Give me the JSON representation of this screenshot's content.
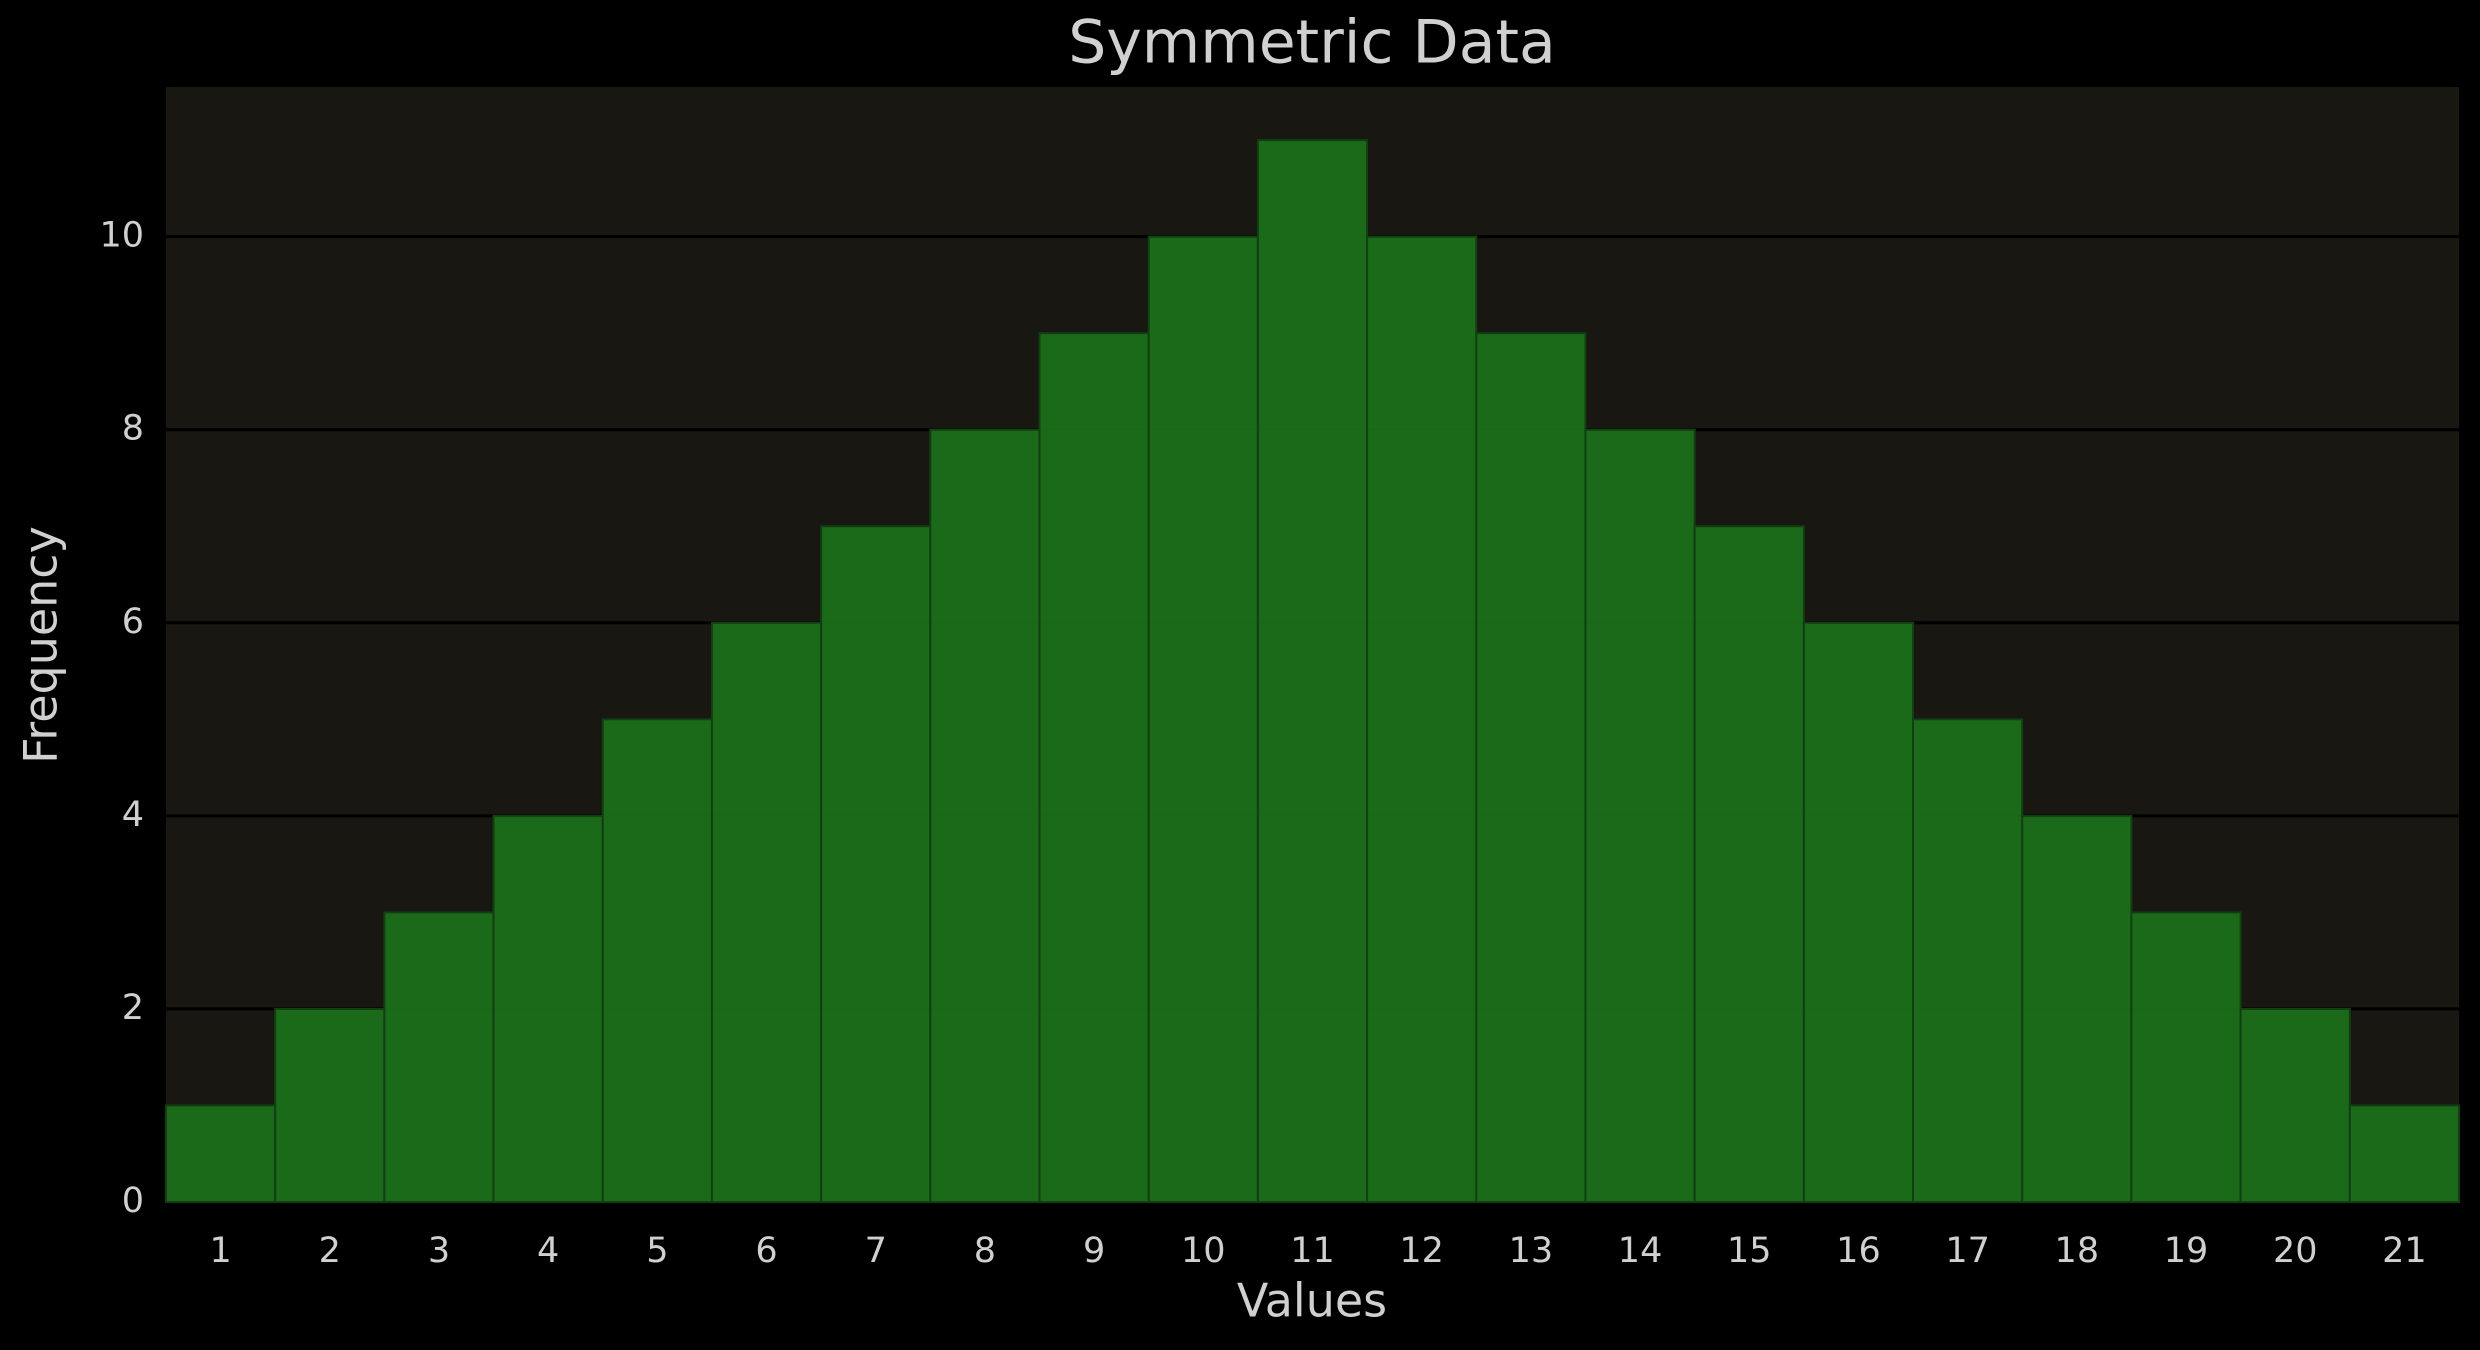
{
  "chart_data": {
    "type": "bar",
    "title": "Symmetric Data",
    "x_label": "Values",
    "y_label": "Frequency",
    "categories": [
      "1",
      "2",
      "3",
      "4",
      "5",
      "6",
      "7",
      "8",
      "9",
      "10",
      "11",
      "12",
      "13",
      "14",
      "15",
      "16",
      "17",
      "18",
      "19",
      "20",
      "21"
    ],
    "values": [
      1,
      2,
      3,
      4,
      5,
      6,
      7,
      8,
      9,
      10,
      11,
      10,
      9,
      8,
      7,
      6,
      5,
      4,
      3,
      2,
      1
    ],
    "color": "#1b6f1a",
    "ylim": [
      0,
      11.55
    ],
    "yticks": [
      0,
      2,
      4,
      6,
      8,
      10
    ],
    "grid": true
  }
}
